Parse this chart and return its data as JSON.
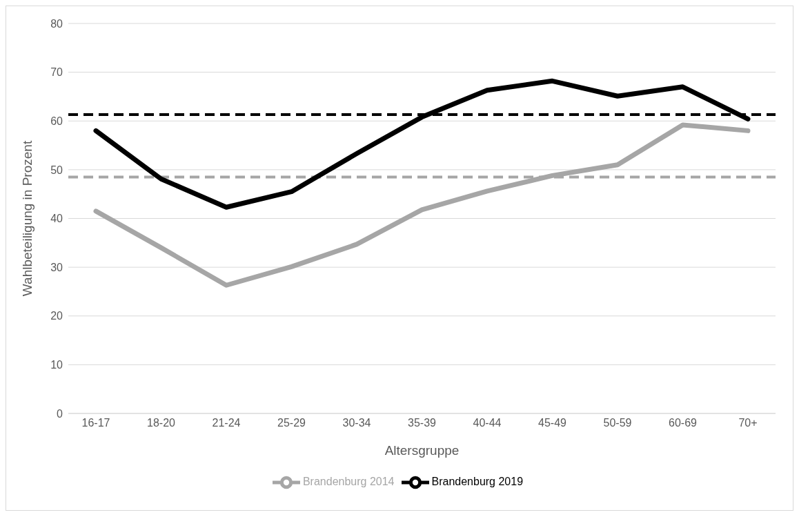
{
  "chart_data": {
    "type": "line",
    "xlabel": "Altersgruppe",
    "ylabel": "Wahlbeteiligung in Prozent",
    "categories": [
      "16-17",
      "18-20",
      "21-24",
      "25-29",
      "30-34",
      "35-39",
      "40-44",
      "45-49",
      "50-59",
      "60-69",
      "70+"
    ],
    "series": [
      {
        "name": "Brandenburg 2014",
        "color": "#a6a6a6",
        "values": [
          41.5,
          34,
          26.3,
          30.1,
          34.7,
          41.8,
          45.6,
          48.8,
          51,
          59.2,
          58
        ]
      },
      {
        "name": "Brandenburg 2019",
        "color": "#000000",
        "values": [
          58,
          48.1,
          42.3,
          45.5,
          53.3,
          60.8,
          66.3,
          68.2,
          65.1,
          67,
          60.4
        ]
      }
    ],
    "ref_lines": [
      {
        "axis": "y",
        "value": 61.3,
        "color": "#000000",
        "line_style": "dashed"
      },
      {
        "axis": "y",
        "value": 48.5,
        "color": "#a6a6a6",
        "line_style": "dashed"
      }
    ],
    "ylim": [
      0,
      80
    ],
    "yticks": [
      0,
      10,
      20,
      30,
      40,
      50,
      60,
      70,
      80
    ],
    "grid": "y",
    "legend": "bottom",
    "marker": "none",
    "line_style": "solid"
  }
}
